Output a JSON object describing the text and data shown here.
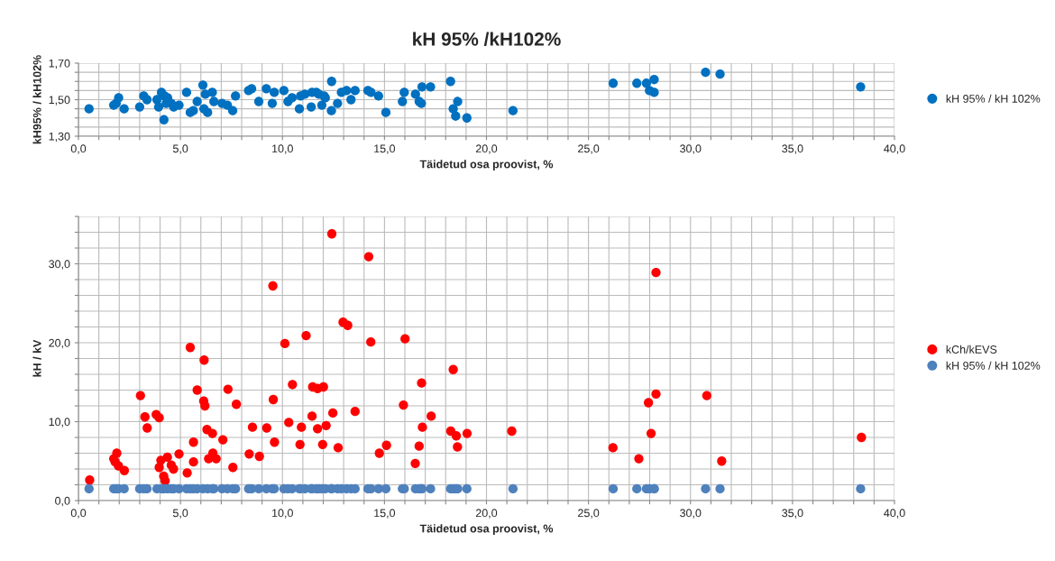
{
  "chart_data": [
    {
      "type": "scatter",
      "title": "kH 95% /kH102%",
      "xlabel": "Täidetud osa proovist, %",
      "ylabel": "kH95% / kH102%",
      "xlim": [
        0,
        40
      ],
      "ylim": [
        1.3,
        1.7
      ],
      "xticks": [
        {
          "value": 0,
          "label": "0,0"
        },
        {
          "value": 1,
          "label": null
        },
        {
          "value": 2,
          "label": null
        },
        {
          "value": 3,
          "label": null
        },
        {
          "value": 4,
          "label": null
        },
        {
          "value": 5,
          "label": "5,0"
        },
        {
          "value": 6,
          "label": null
        },
        {
          "value": 7,
          "label": null
        },
        {
          "value": 8,
          "label": null
        },
        {
          "value": 9,
          "label": null
        },
        {
          "value": 10,
          "label": "10,0"
        },
        {
          "value": 11,
          "label": null
        },
        {
          "value": 12,
          "label": null
        },
        {
          "value": 13,
          "label": null
        },
        {
          "value": 14,
          "label": null
        },
        {
          "value": 15,
          "label": "15,0"
        },
        {
          "value": 16,
          "label": null
        },
        {
          "value": 17,
          "label": null
        },
        {
          "value": 18,
          "label": null
        },
        {
          "value": 19,
          "label": null
        },
        {
          "value": 20,
          "label": "20,0"
        },
        {
          "value": 21,
          "label": null
        },
        {
          "value": 22,
          "label": null
        },
        {
          "value": 23,
          "label": null
        },
        {
          "value": 24,
          "label": null
        },
        {
          "value": 25,
          "label": "25,0"
        },
        {
          "value": 26,
          "label": null
        },
        {
          "value": 27,
          "label": null
        },
        {
          "value": 28,
          "label": null
        },
        {
          "value": 29,
          "label": null
        },
        {
          "value": 30,
          "label": "30,0"
        },
        {
          "value": 31,
          "label": null
        },
        {
          "value": 32,
          "label": null
        },
        {
          "value": 33,
          "label": null
        },
        {
          "value": 34,
          "label": null
        },
        {
          "value": 35,
          "label": "35,0"
        },
        {
          "value": 36,
          "label": null
        },
        {
          "value": 37,
          "label": null
        },
        {
          "value": 38,
          "label": null
        },
        {
          "value": 39,
          "label": null
        },
        {
          "value": 40,
          "label": "40,0"
        }
      ],
      "yticks": [
        {
          "value": 1.3,
          "label": "1,30"
        },
        {
          "value": 1.35,
          "label": null
        },
        {
          "value": 1.4,
          "label": null
        },
        {
          "value": 1.45,
          "label": null
        },
        {
          "value": 1.5,
          "label": "1,50"
        },
        {
          "value": 1.55,
          "label": null
        },
        {
          "value": 1.6,
          "label": null
        },
        {
          "value": 1.65,
          "label": null
        },
        {
          "value": 1.7,
          "label": "1,70"
        }
      ],
      "grid": true,
      "legend": "right",
      "marker": "circle",
      "series": [
        {
          "name": "kH 95% / kH 102%",
          "color": "#0070c0",
          "x": [
            0.52,
            1.73,
            1.85,
            1.97,
            2.24,
            3.0,
            3.2,
            3.36,
            3.85,
            3.93,
            4.07,
            4.19,
            4.22,
            4.3,
            4.37,
            4.55,
            4.67,
            4.93,
            5.3,
            5.48,
            5.63,
            5.82,
            6.1,
            6.15,
            6.22,
            6.33,
            6.56,
            6.64,
            7.04,
            7.3,
            7.56,
            7.7,
            8.34,
            8.49,
            8.84,
            9.21,
            9.5,
            9.6,
            10.07,
            10.27,
            10.47,
            10.83,
            10.89,
            11.1,
            11.41,
            11.45,
            11.66,
            11.78,
            11.93,
            12.04,
            12.1,
            12.41,
            12.4,
            12.7,
            12.89,
            13.14,
            13.36,
            13.56,
            14.19,
            14.34,
            14.71,
            15.07,
            15.88,
            15.97,
            16.52,
            16.7,
            16.81,
            16.84,
            17.26,
            18.24,
            18.37,
            18.49,
            18.59,
            19.04,
            21.3,
            26.21,
            27.37,
            27.84,
            28.22,
            27.99,
            28.22,
            30.74,
            31.45,
            38.34
          ],
          "values": [
            1.45,
            1.47,
            1.48,
            1.51,
            1.45,
            1.46,
            1.52,
            1.5,
            1.5,
            1.46,
            1.54,
            1.39,
            1.52,
            1.48,
            1.51,
            1.48,
            1.46,
            1.47,
            1.54,
            1.43,
            1.44,
            1.49,
            1.58,
            1.45,
            1.53,
            1.43,
            1.54,
            1.49,
            1.48,
            1.47,
            1.44,
            1.52,
            1.55,
            1.56,
            1.49,
            1.56,
            1.48,
            1.54,
            1.55,
            1.49,
            1.51,
            1.45,
            1.52,
            1.53,
            1.46,
            1.54,
            1.54,
            1.53,
            1.47,
            1.52,
            1.51,
            1.6,
            1.44,
            1.48,
            1.54,
            1.55,
            1.5,
            1.55,
            1.55,
            1.54,
            1.52,
            1.43,
            1.49,
            1.54,
            1.53,
            1.49,
            1.48,
            1.57,
            1.57,
            1.6,
            1.45,
            1.41,
            1.49,
            1.4,
            1.44,
            1.59,
            1.59,
            1.59,
            1.61,
            1.55,
            1.54,
            1.65,
            1.64,
            1.57
          ]
        }
      ]
    },
    {
      "type": "scatter",
      "xlabel": "Täidetud osa proovist, %",
      "ylabel": "kH / kV",
      "xlim": [
        0,
        40
      ],
      "ylim": [
        0,
        36
      ],
      "xticks": [
        {
          "value": 0,
          "label": "0,0"
        },
        {
          "value": 1,
          "label": null
        },
        {
          "value": 2,
          "label": null
        },
        {
          "value": 3,
          "label": null
        },
        {
          "value": 4,
          "label": null
        },
        {
          "value": 5,
          "label": "5,0"
        },
        {
          "value": 6,
          "label": null
        },
        {
          "value": 7,
          "label": null
        },
        {
          "value": 8,
          "label": null
        },
        {
          "value": 9,
          "label": null
        },
        {
          "value": 10,
          "label": "10,0"
        },
        {
          "value": 11,
          "label": null
        },
        {
          "value": 12,
          "label": null
        },
        {
          "value": 13,
          "label": null
        },
        {
          "value": 14,
          "label": null
        },
        {
          "value": 15,
          "label": "15,0"
        },
        {
          "value": 16,
          "label": null
        },
        {
          "value": 17,
          "label": null
        },
        {
          "value": 18,
          "label": null
        },
        {
          "value": 19,
          "label": null
        },
        {
          "value": 20,
          "label": "20,0"
        },
        {
          "value": 21,
          "label": null
        },
        {
          "value": 22,
          "label": null
        },
        {
          "value": 23,
          "label": null
        },
        {
          "value": 24,
          "label": null
        },
        {
          "value": 25,
          "label": "25,0"
        },
        {
          "value": 26,
          "label": null
        },
        {
          "value": 27,
          "label": null
        },
        {
          "value": 28,
          "label": null
        },
        {
          "value": 29,
          "label": null
        },
        {
          "value": 30,
          "label": "30,0"
        },
        {
          "value": 31,
          "label": null
        },
        {
          "value": 32,
          "label": null
        },
        {
          "value": 33,
          "label": null
        },
        {
          "value": 34,
          "label": null
        },
        {
          "value": 35,
          "label": "35,0"
        },
        {
          "value": 36,
          "label": null
        },
        {
          "value": 37,
          "label": null
        },
        {
          "value": 38,
          "label": null
        },
        {
          "value": 39,
          "label": null
        },
        {
          "value": 40,
          "label": "40,0"
        }
      ],
      "yticks": [
        {
          "value": 0,
          "label": "0,0"
        },
        {
          "value": 2,
          "label": null
        },
        {
          "value": 4,
          "label": null
        },
        {
          "value": 6,
          "label": null
        },
        {
          "value": 8,
          "label": null
        },
        {
          "value": 10,
          "label": "10,0"
        },
        {
          "value": 12,
          "label": null
        },
        {
          "value": 14,
          "label": null
        },
        {
          "value": 16,
          "label": null
        },
        {
          "value": 18,
          "label": null
        },
        {
          "value": 20,
          "label": "20,0"
        },
        {
          "value": 22,
          "label": null
        },
        {
          "value": 24,
          "label": null
        },
        {
          "value": 26,
          "label": null
        },
        {
          "value": 28,
          "label": null
        },
        {
          "value": 30,
          "label": "30,0"
        },
        {
          "value": 32,
          "label": null
        },
        {
          "value": 34,
          "label": null
        },
        {
          "value": 36,
          "label": null
        }
      ],
      "grid": true,
      "legend": "right",
      "marker": "circle",
      "series": [
        {
          "name": "kCh/kEVS",
          "color": "#ff0000",
          "x": [
            0.55,
            1.88,
            1.73,
            1.8,
            1.96,
            2.25,
            3.04,
            3.26,
            3.37,
            3.81,
            3.96,
            4.04,
            3.96,
            4.18,
            4.25,
            4.36,
            4.55,
            4.66,
            4.93,
            5.33,
            5.48,
            5.64,
            5.64,
            5.82,
            6.16,
            6.14,
            6.2,
            6.3,
            6.38,
            6.57,
            6.59,
            6.75,
            7.08,
            7.33,
            7.57,
            7.74,
            8.37,
            8.53,
            8.87,
            9.23,
            9.53,
            9.55,
            9.61,
            10.12,
            10.31,
            10.49,
            10.86,
            10.93,
            11.16,
            11.45,
            11.48,
            11.72,
            12.01,
            11.72,
            11.97,
            12.14,
            12.42,
            12.47,
            12.73,
            12.97,
            13.2,
            13.56,
            14.23,
            14.33,
            16.01,
            14.75,
            15.1,
            15.93,
            16.51,
            16.7,
            16.82,
            16.86,
            17.29,
            18.25,
            18.37,
            18.52,
            18.58,
            19.05,
            21.24,
            26.2,
            27.47,
            27.94,
            28.07,
            28.31,
            28.31,
            30.8,
            31.53,
            38.38
          ],
          "values": [
            2.6,
            6.0,
            5.3,
            4.9,
            4.4,
            3.8,
            13.3,
            10.6,
            9.2,
            10.9,
            10.5,
            5.1,
            4.2,
            3.1,
            2.5,
            5.5,
            4.5,
            4.0,
            5.9,
            3.5,
            19.4,
            7.4,
            4.9,
            14.0,
            17.8,
            12.6,
            12.0,
            9.0,
            5.3,
            8.5,
            6.0,
            5.3,
            7.7,
            14.1,
            4.2,
            12.2,
            5.9,
            9.3,
            5.6,
            9.2,
            27.2,
            12.8,
            7.4,
            19.9,
            9.9,
            14.7,
            7.1,
            9.3,
            20.9,
            10.7,
            14.4,
            14.2,
            14.4,
            9.1,
            7.1,
            9.5,
            33.8,
            11.1,
            6.7,
            22.6,
            22.2,
            11.3,
            30.9,
            20.1,
            20.5,
            6.0,
            7.0,
            12.1,
            4.7,
            6.9,
            14.9,
            9.3,
            10.7,
            8.8,
            16.6,
            8.2,
            6.8,
            8.5,
            8.8,
            6.7,
            5.3,
            12.4,
            8.5,
            28.9,
            13.5,
            13.3,
            5.0,
            8.0
          ]
        },
        {
          "name": "kH 95% / kH 102%",
          "color": "#4f81bd",
          "x": [
            0.52,
            1.73,
            1.85,
            1.97,
            2.24,
            3.0,
            3.2,
            3.36,
            3.85,
            4.07,
            4.19,
            4.37,
            4.55,
            4.67,
            4.93,
            5.3,
            5.48,
            5.63,
            5.82,
            6.1,
            6.33,
            6.56,
            6.64,
            7.04,
            7.3,
            7.56,
            7.7,
            8.34,
            8.49,
            8.84,
            9.21,
            9.5,
            9.6,
            10.07,
            10.27,
            10.47,
            10.83,
            10.89,
            11.1,
            11.41,
            11.45,
            11.66,
            11.78,
            11.93,
            12.1,
            12.41,
            12.4,
            12.7,
            12.89,
            13.14,
            13.36,
            13.56,
            14.19,
            14.34,
            14.71,
            15.07,
            15.88,
            15.97,
            16.52,
            16.7,
            16.81,
            16.84,
            17.26,
            18.24,
            18.37,
            18.49,
            18.59,
            19.04,
            21.3,
            26.21,
            27.37,
            27.84,
            28.22,
            27.99,
            28.22,
            30.74,
            31.45,
            38.34
          ],
          "values": [
            1.5,
            1.5,
            1.5,
            1.5,
            1.5,
            1.5,
            1.5,
            1.5,
            1.5,
            1.5,
            1.5,
            1.5,
            1.5,
            1.5,
            1.5,
            1.5,
            1.5,
            1.5,
            1.5,
            1.5,
            1.5,
            1.5,
            1.5,
            1.5,
            1.5,
            1.5,
            1.5,
            1.5,
            1.5,
            1.5,
            1.5,
            1.5,
            1.5,
            1.5,
            1.5,
            1.5,
            1.5,
            1.5,
            1.5,
            1.5,
            1.5,
            1.5,
            1.5,
            1.5,
            1.5,
            1.5,
            1.5,
            1.5,
            1.5,
            1.5,
            1.5,
            1.5,
            1.5,
            1.5,
            1.5,
            1.5,
            1.5,
            1.5,
            1.5,
            1.5,
            1.5,
            1.5,
            1.5,
            1.5,
            1.5,
            1.5,
            1.5,
            1.5,
            1.5,
            1.5,
            1.5,
            1.5,
            1.5,
            1.5,
            1.5,
            1.5,
            1.5,
            1.5
          ]
        }
      ]
    }
  ]
}
